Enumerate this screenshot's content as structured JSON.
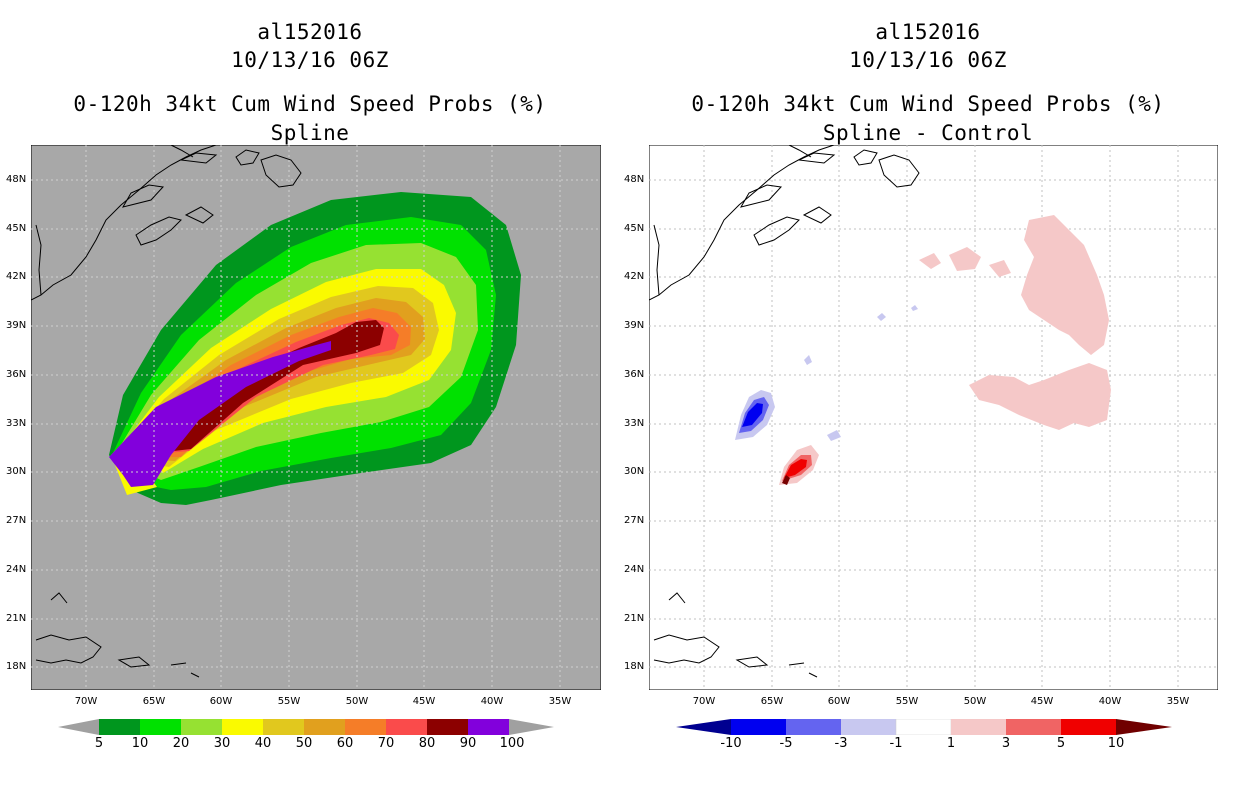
{
  "left": {
    "storm_id": "al152016",
    "date": "10/13/16 06Z",
    "product": "0-120h 34kt Cum Wind Speed Probs (%)",
    "subtitle": "Spline",
    "lat_labels": [
      "48N",
      "45N",
      "42N",
      "39N",
      "36N",
      "33N",
      "30N",
      "27N",
      "24N",
      "21N",
      "18N"
    ],
    "lon_labels": [
      "70W",
      "65W",
      "60W",
      "55W",
      "50W",
      "45W",
      "40W",
      "35W"
    ],
    "colorbar": {
      "labels": [
        "5",
        "10",
        "20",
        "30",
        "40",
        "50",
        "60",
        "70",
        "80",
        "90",
        "100"
      ],
      "colors": [
        "#00961e",
        "#00e100",
        "#96e132",
        "#fafa00",
        "#e1c81e",
        "#e1a01e",
        "#f57d28",
        "#fa4b4b",
        "#8c0000",
        "#8200dc"
      ],
      "extend_color": "#a0a0a0"
    },
    "map_background": "#a8a8a8"
  },
  "right": {
    "storm_id": "al152016",
    "date": "10/13/16 06Z",
    "product": "0-120h 34kt Cum Wind Speed Probs (%)",
    "subtitle": "Spline - Control",
    "lat_labels": [
      "48N",
      "45N",
      "42N",
      "39N",
      "36N",
      "33N",
      "30N",
      "27N",
      "24N",
      "21N",
      "18N"
    ],
    "lon_labels": [
      "70W",
      "65W",
      "60W",
      "55W",
      "50W",
      "45W",
      "40W",
      "35W"
    ],
    "colorbar": {
      "labels": [
        "-10",
        "-5",
        "-3",
        "-1",
        "1",
        "3",
        "5",
        "10"
      ],
      "colors": [
        "#0000a0",
        "#0000f0",
        "#6464f0",
        "#c8c8f0",
        "#ffffff",
        "#f5c8c8",
        "#f06464",
        "#f00000",
        "#780000"
      ],
      "low_color": "#000090",
      "high_color": "#700000"
    },
    "map_background": "#ffffff"
  }
}
